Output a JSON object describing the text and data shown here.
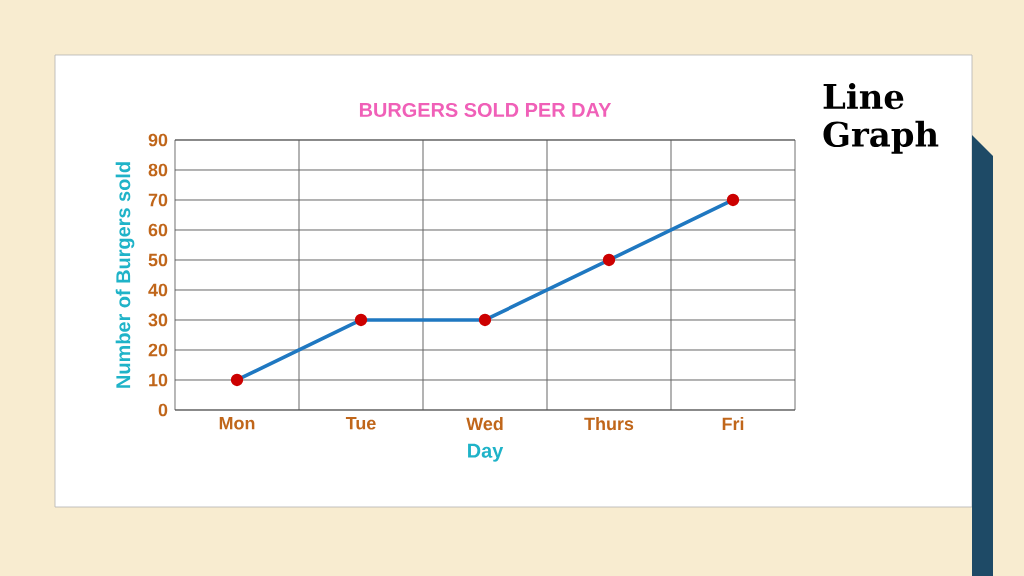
{
  "chart_data": {
    "type": "line",
    "title": "BURGERS SOLD PER DAY",
    "xlabel": "Day",
    "ylabel": "Number of Burgers sold",
    "categories": [
      "Mon",
      "Tue",
      "Wed",
      "Thurs",
      "Fri"
    ],
    "series": [
      {
        "color": "#1f78c1",
        "values": [
          10,
          30,
          30,
          50,
          70
        ]
      }
    ],
    "ylim": [
      0,
      90
    ],
    "yticks": [
      0,
      10,
      20,
      30,
      40,
      50,
      60,
      70,
      80,
      90
    ],
    "grid": true,
    "marker": "circle",
    "line_style": "solid",
    "annotations": [
      "Line Graph"
    ]
  }
}
